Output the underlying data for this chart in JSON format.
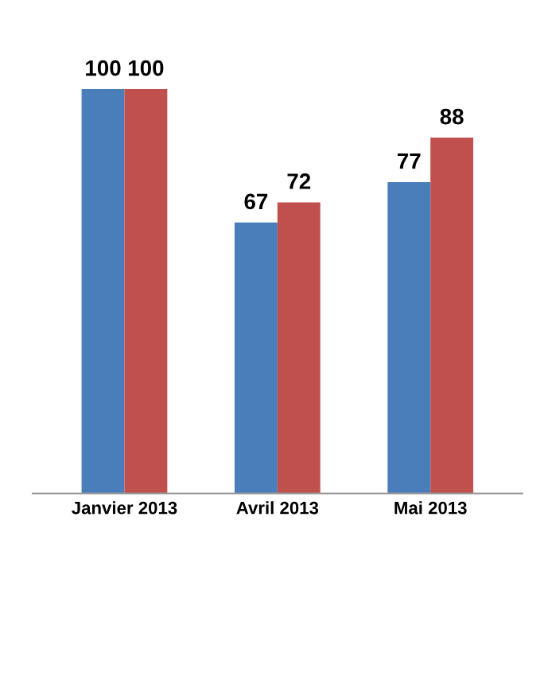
{
  "chart_data": {
    "type": "bar",
    "categories": [
      "Janvier 2013",
      "Avril 2013",
      "Mai 2013"
    ],
    "series": [
      {
        "color": "#4a7ebb",
        "values": [
          100,
          67,
          77
        ]
      },
      {
        "color": "#c0504d",
        "values": [
          100,
          72,
          88
        ]
      }
    ],
    "data_labels": true,
    "legend": false,
    "grid": false
  }
}
